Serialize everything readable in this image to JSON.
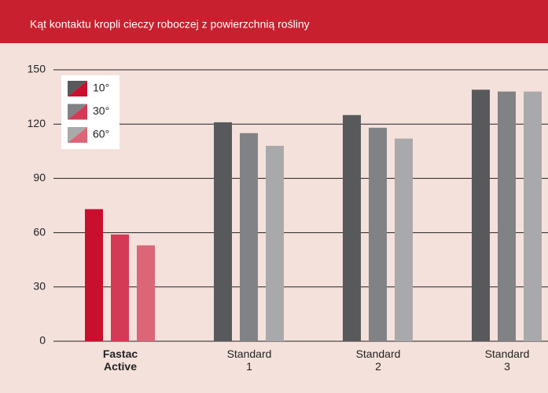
{
  "chart_data": {
    "type": "bar",
    "title": "Kąt kontaktu kropli cieczy roboczej z powierzchnią rośliny",
    "categories": [
      "Fastac Active",
      "Standard 1",
      "Standard 2",
      "Standard 3"
    ],
    "highlight_category": 0,
    "series": [
      {
        "name": "10°",
        "color": "#58595b",
        "highlight_color": "#c8102e",
        "values": [
          73,
          121,
          125,
          139
        ]
      },
      {
        "name": "30°",
        "color": "#818285",
        "highlight_color": "#d43a55",
        "values": [
          59,
          115,
          118,
          138
        ]
      },
      {
        "name": "60°",
        "color": "#a9a9ab",
        "highlight_color": "#db6677",
        "values": [
          53,
          108,
          112,
          138
        ]
      }
    ],
    "ylim": [
      0,
      150
    ],
    "yticks": [
      0,
      30,
      60,
      90,
      120,
      150
    ],
    "grid": true,
    "legend": "upper left"
  }
}
